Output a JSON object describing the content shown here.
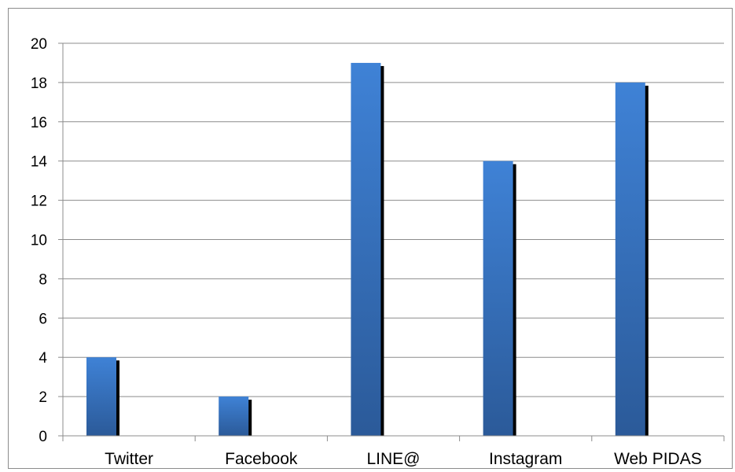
{
  "chart_data": {
    "type": "bar",
    "title": "",
    "xlabel": "",
    "ylabel": "",
    "categories": [
      "Twitter",
      "Facebook",
      "LINE@",
      "Instagram",
      "Web PIDAS"
    ],
    "series": [
      {
        "values": [
          4,
          2,
          19,
          14,
          18
        ]
      }
    ],
    "ylim": [
      0,
      20
    ],
    "ytick_step": 2,
    "grid": true,
    "legend": "none",
    "colors": {
      "bar_top": "#3f82d6",
      "bar_bottom": "#2b5a99",
      "bar_shadow": "#000000",
      "grid": "#8c8c8c",
      "axis": "#8c8c8c"
    }
  }
}
